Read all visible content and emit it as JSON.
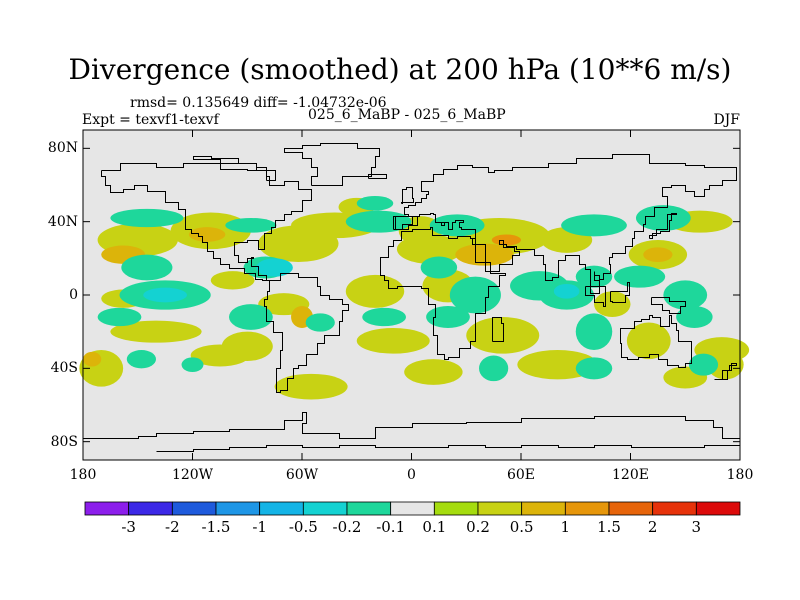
{
  "chart_data": {
    "type": "heatmap",
    "title": "Divergence (smoothed) at 200 hPa (10**6 m/s)",
    "stats": "rmsd= 0.135649 diff= -1.04732e-06",
    "experiment": "Expt = texvf1-texvf",
    "center_label": "025_6_MaBP - 025_6_MaBP",
    "season": "DJF",
    "x_axis": {
      "ticks": [
        {
          "label": "180",
          "lon": -180
        },
        {
          "label": "120W",
          "lon": -120
        },
        {
          "label": "60W",
          "lon": -60
        },
        {
          "label": "0",
          "lon": 0
        },
        {
          "label": "60E",
          "lon": 60
        },
        {
          "label": "120E",
          "lon": 120
        },
        {
          "label": "180",
          "lon": 180
        }
      ]
    },
    "y_axis": {
      "ticks": [
        {
          "label": "80N",
          "lat": 80
        },
        {
          "label": "40N",
          "lat": 40
        },
        {
          "label": "0",
          "lat": 0
        },
        {
          "label": "40S",
          "lat": -40
        },
        {
          "label": "80S",
          "lat": -80
        }
      ],
      "range": [
        -90,
        90
      ]
    },
    "lon_range": [
      -180,
      180
    ],
    "colorbar": {
      "colors": [
        "#8c1eeb",
        "#3c28e6",
        "#1e5adc",
        "#1e96e6",
        "#14b4e6",
        "#14d2d2",
        "#1ed79b",
        "#e6e6e6",
        "#a5dc0f",
        "#c8d214",
        "#dcb40a",
        "#e6960a",
        "#e6640a",
        "#e6320a",
        "#dc0a0a"
      ],
      "tick_labels": [
        "-3",
        "-2",
        "-1.5",
        "-1",
        "-0.5",
        "-0.2",
        "-0.1",
        "0.1",
        "0.2",
        "0.5",
        "1",
        "1.5",
        "2",
        "3"
      ]
    },
    "field_blobs": [
      {
        "lon": -150,
        "lat": 30,
        "rx": 22,
        "ry": 9,
        "level": 0.25
      },
      {
        "lon": -158,
        "lat": 22,
        "rx": 12,
        "ry": 5,
        "level": 0.6
      },
      {
        "lon": -110,
        "lat": 35,
        "rx": 22,
        "ry": 10,
        "level": 0.25
      },
      {
        "lon": -112,
        "lat": 33,
        "rx": 10,
        "ry": 4,
        "level": 0.6
      },
      {
        "lon": -62,
        "lat": 28,
        "rx": 22,
        "ry": 10,
        "level": 0.25
      },
      {
        "lon": -42,
        "lat": 38,
        "rx": 24,
        "ry": 7,
        "level": 0.25
      },
      {
        "lon": -30,
        "lat": 48,
        "rx": 10,
        "ry": 5,
        "level": 0.25
      },
      {
        "lon": 5,
        "lat": 35,
        "rx": 12,
        "ry": 8,
        "level": 0.25
      },
      {
        "lon": 10,
        "lat": 25,
        "rx": 18,
        "ry": 8,
        "level": 0.25
      },
      {
        "lon": 48,
        "lat": 32,
        "rx": 28,
        "ry": 10,
        "level": 0.25
      },
      {
        "lon": 40,
        "lat": 22,
        "rx": 16,
        "ry": 6,
        "level": 0.6
      },
      {
        "lon": 52,
        "lat": 30,
        "rx": 8,
        "ry": 3,
        "level": 1.2
      },
      {
        "lon": 85,
        "lat": 30,
        "rx": 14,
        "ry": 7,
        "level": 0.25
      },
      {
        "lon": 135,
        "lat": 22,
        "rx": 16,
        "ry": 8,
        "level": 0.25
      },
      {
        "lon": 135,
        "lat": 22,
        "rx": 8,
        "ry": 4,
        "level": 0.6
      },
      {
        "lon": 158,
        "lat": 40,
        "rx": 18,
        "ry": 6,
        "level": 0.25
      },
      {
        "lon": -158,
        "lat": -2,
        "rx": 12,
        "ry": 5,
        "level": 0.25
      },
      {
        "lon": -98,
        "lat": 8,
        "rx": 12,
        "ry": 5,
        "level": 0.25
      },
      {
        "lon": -70,
        "lat": -5,
        "rx": 14,
        "ry": 6,
        "level": 0.25
      },
      {
        "lon": -60,
        "lat": -12,
        "rx": 6,
        "ry": 6,
        "level": 0.6
      },
      {
        "lon": -20,
        "lat": 2,
        "rx": 16,
        "ry": 9,
        "level": 0.25
      },
      {
        "lon": 20,
        "lat": 5,
        "rx": 14,
        "ry": 9,
        "level": 0.25
      },
      {
        "lon": 110,
        "lat": -5,
        "rx": 10,
        "ry": 7,
        "level": 0.25
      },
      {
        "lon": -140,
        "lat": -20,
        "rx": 25,
        "ry": 6,
        "level": 0.25
      },
      {
        "lon": -90,
        "lat": -28,
        "rx": 14,
        "ry": 8,
        "level": 0.25
      },
      {
        "lon": -105,
        "lat": -33,
        "rx": 16,
        "ry": 6,
        "level": 0.25
      },
      {
        "lon": -10,
        "lat": -25,
        "rx": 20,
        "ry": 7,
        "level": 0.25
      },
      {
        "lon": 50,
        "lat": -22,
        "rx": 20,
        "ry": 10,
        "level": 0.25
      },
      {
        "lon": 130,
        "lat": -25,
        "rx": 12,
        "ry": 10,
        "level": 0.25
      },
      {
        "lon": 170,
        "lat": -30,
        "rx": 15,
        "ry": 7,
        "level": 0.25
      },
      {
        "lon": -170,
        "lat": -40,
        "rx": 12,
        "ry": 10,
        "level": 0.25
      },
      {
        "lon": -175,
        "lat": -35,
        "rx": 5,
        "ry": 4,
        "level": 0.6
      },
      {
        "lon": -55,
        "lat": -50,
        "rx": 20,
        "ry": 7,
        "level": 0.25
      },
      {
        "lon": 12,
        "lat": -42,
        "rx": 16,
        "ry": 7,
        "level": 0.25
      },
      {
        "lon": 80,
        "lat": -38,
        "rx": 22,
        "ry": 8,
        "level": 0.25
      },
      {
        "lon": 150,
        "lat": -45,
        "rx": 12,
        "ry": 6,
        "level": 0.25
      },
      {
        "lon": 172,
        "lat": -38,
        "rx": 10,
        "ry": 8,
        "level": 0.25
      },
      {
        "lon": -145,
        "lat": 42,
        "rx": 20,
        "ry": 5,
        "level": -0.15
      },
      {
        "lon": -88,
        "lat": 38,
        "rx": 14,
        "ry": 4,
        "level": -0.15
      },
      {
        "lon": -18,
        "lat": 40,
        "rx": 18,
        "ry": 6,
        "level": -0.15
      },
      {
        "lon": 25,
        "lat": 38,
        "rx": 15,
        "ry": 6,
        "level": -0.15
      },
      {
        "lon": 100,
        "lat": 38,
        "rx": 18,
        "ry": 6,
        "level": -0.15
      },
      {
        "lon": 138,
        "lat": 42,
        "rx": 15,
        "ry": 7,
        "level": -0.15
      },
      {
        "lon": -20,
        "lat": 50,
        "rx": 10,
        "ry": 4,
        "level": -0.15
      },
      {
        "lon": -145,
        "lat": 15,
        "rx": 14,
        "ry": 7,
        "level": -0.15
      },
      {
        "lon": -80,
        "lat": 15,
        "rx": 12,
        "ry": 6,
        "level": -0.15
      },
      {
        "lon": -135,
        "lat": 0,
        "rx": 25,
        "ry": 8,
        "level": -0.15
      },
      {
        "lon": -135,
        "lat": 0,
        "rx": 12,
        "ry": 4,
        "level": -0.35
      },
      {
        "lon": -75,
        "lat": 15,
        "rx": 10,
        "ry": 5,
        "level": -0.35
      },
      {
        "lon": 15,
        "lat": 15,
        "rx": 10,
        "ry": 6,
        "level": -0.15
      },
      {
        "lon": 35,
        "lat": 0,
        "rx": 14,
        "ry": 10,
        "level": -0.15
      },
      {
        "lon": 70,
        "lat": 5,
        "rx": 16,
        "ry": 8,
        "level": -0.15
      },
      {
        "lon": 85,
        "lat": 0,
        "rx": 15,
        "ry": 8,
        "level": -0.15
      },
      {
        "lon": 85,
        "lat": 2,
        "rx": 7,
        "ry": 4,
        "level": -0.35
      },
      {
        "lon": 100,
        "lat": 10,
        "rx": 10,
        "ry": 6,
        "level": -0.15
      },
      {
        "lon": 125,
        "lat": 10,
        "rx": 14,
        "ry": 6,
        "level": -0.15
      },
      {
        "lon": 150,
        "lat": 0,
        "rx": 12,
        "ry": 8,
        "level": -0.15
      },
      {
        "lon": -160,
        "lat": -12,
        "rx": 12,
        "ry": 5,
        "level": -0.15
      },
      {
        "lon": -88,
        "lat": -12,
        "rx": 12,
        "ry": 7,
        "level": -0.15
      },
      {
        "lon": -50,
        "lat": -15,
        "rx": 8,
        "ry": 5,
        "level": -0.15
      },
      {
        "lon": -15,
        "lat": -12,
        "rx": 12,
        "ry": 5,
        "level": -0.15
      },
      {
        "lon": 20,
        "lat": -12,
        "rx": 12,
        "ry": 6,
        "level": -0.15
      },
      {
        "lon": 100,
        "lat": -20,
        "rx": 10,
        "ry": 10,
        "level": -0.15
      },
      {
        "lon": 155,
        "lat": -12,
        "rx": 10,
        "ry": 6,
        "level": -0.15
      },
      {
        "lon": -148,
        "lat": -35,
        "rx": 8,
        "ry": 5,
        "level": -0.15
      },
      {
        "lon": -120,
        "lat": -38,
        "rx": 6,
        "ry": 4,
        "level": -0.15
      },
      {
        "lon": 45,
        "lat": -40,
        "rx": 8,
        "ry": 7,
        "level": -0.15
      },
      {
        "lon": 100,
        "lat": -40,
        "rx": 10,
        "ry": 6,
        "level": -0.15
      },
      {
        "lon": 160,
        "lat": -38,
        "rx": 8,
        "ry": 6,
        "level": -0.15
      }
    ]
  }
}
